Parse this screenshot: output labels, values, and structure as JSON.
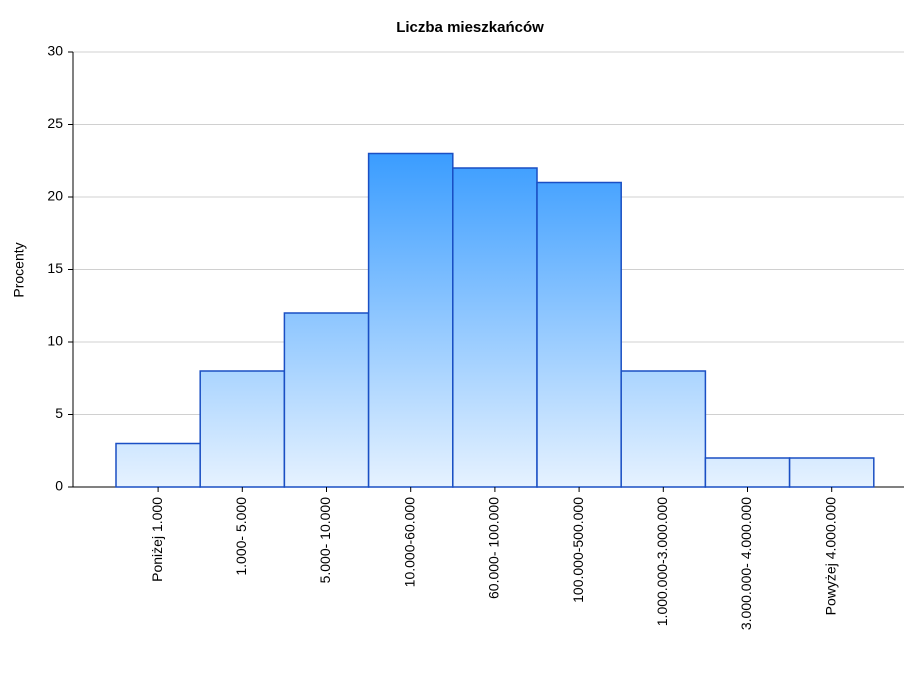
{
  "chart_data": {
    "type": "bar",
    "title": "Liczba mieszkańców",
    "ylabel": "Procenty",
    "categories": [
      "Poniżej 1.000",
      "1.000- 5.000",
      "5.000- 10.000",
      "10.000-60.000",
      "60.000- 100.000",
      "100.000-500.000",
      "1.000.000-3.000.000",
      "3.000.000- 4.000.000",
      "Powyżej 4.000.000"
    ],
    "values": [
      3,
      8,
      12,
      23,
      22,
      21,
      8,
      2,
      2
    ],
    "color": "#3399ff",
    "edgecolor": "#1a4fc4",
    "ylim": [
      0,
      30
    ],
    "yticks": [
      0,
      5,
      10,
      15,
      20,
      25,
      30
    ],
    "grid": true
  }
}
